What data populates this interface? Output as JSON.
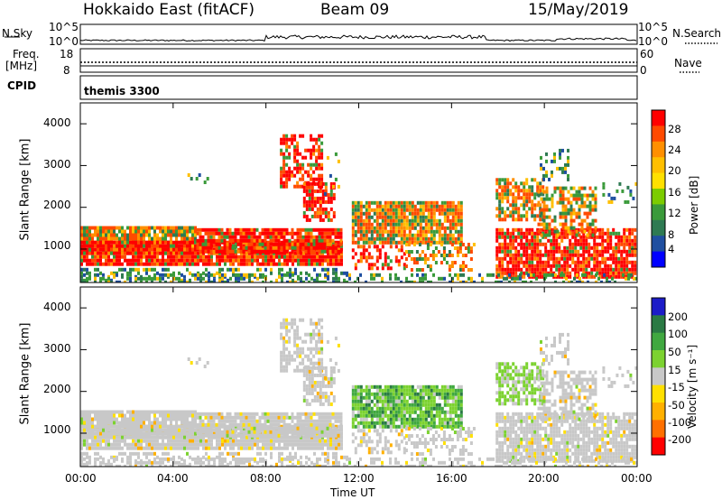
{
  "header": {
    "station": "Hokkaido East (fitACF)",
    "beam": "Beam 09",
    "date": "15/May/2019"
  },
  "summary": {
    "nsky_label": "N.Sky",
    "nsky_ticks": [
      "10^5",
      "10^0"
    ],
    "nsearch_label": "N.Search",
    "nsearch_ticks": [
      "10^5",
      "10^0"
    ],
    "freq_label_line1": "Freq.",
    "freq_label_line2": "[MHz]",
    "freq_ticks": [
      "18",
      "8"
    ],
    "nave_label": "Nave",
    "nave_ticks": [
      "60",
      "0"
    ],
    "cpid_label": "CPID",
    "cpid_value": "themis 3300"
  },
  "axes": {
    "ylabel": "Slant Range [km]",
    "yticks": [
      "4000",
      "3000",
      "2000",
      "1000"
    ],
    "xticks": [
      "00:00",
      "04:00",
      "08:00",
      "12:00",
      "16:00",
      "20:00",
      "00:00"
    ],
    "xlabel": "Time UT"
  },
  "colorbars": {
    "power": {
      "label": "Power [dB]",
      "ticks": [
        "28",
        "24",
        "20",
        "16",
        "12",
        "8",
        "4"
      ],
      "colors": [
        "#ff0000",
        "#ff4a00",
        "#ff8f00",
        "#ffbf00",
        "#ffe000",
        "#7ccc00",
        "#3a9a3a",
        "#2e7a52",
        "#1f4fa0",
        "#0000ff"
      ]
    },
    "velocity": {
      "label": "Velocity [m s⁻¹]",
      "ticks": [
        "200",
        "100",
        "50",
        "15",
        "-15",
        "-50",
        "-100",
        "-200"
      ],
      "colors": [
        "#1c1cc8",
        "#2a7a44",
        "#40a840",
        "#7cd230",
        "#c8c8c8",
        "#ffe000",
        "#ffb000",
        "#ff7000",
        "#ff0000"
      ]
    }
  },
  "chart_data": [
    {
      "type": "heatmap",
      "title": "Power [dB]",
      "xlabel": "Time UT",
      "ylabel": "Slant Range [km]",
      "xlim": [
        0,
        24
      ],
      "ylim": [
        200,
        4500
      ],
      "clim": [
        0,
        30
      ],
      "regions": [
        {
          "t": [
            0,
            11.5
          ],
          "r": [
            600,
            1500
          ],
          "dominant": "red/orange, ~20-30 dB"
        },
        {
          "t": [
            8.5,
            10.5
          ],
          "r": [
            1700,
            3700
          ],
          "dominant": "orange/red arc, ~20-30 dB"
        },
        {
          "t": [
            12,
            16.5
          ],
          "r": [
            1100,
            2200
          ],
          "dominant": "orange/green band, ~12-28 dB"
        },
        {
          "t": [
            18,
            24
          ],
          "r": [
            400,
            2700
          ],
          "dominant": "red/green, ~12-30 dB"
        }
      ]
    },
    {
      "type": "heatmap",
      "title": "Velocity [m s-1]",
      "xlabel": "Time UT",
      "ylabel": "Slant Range [km]",
      "xlim": [
        0,
        24
      ],
      "ylim": [
        200,
        4500
      ],
      "clim": [
        -200,
        200
      ],
      "regions": [
        {
          "t": [
            0,
            11.5
          ],
          "r": [
            400,
            1500
          ],
          "dominant": "grey ~0 m/s"
        },
        {
          "t": [
            12,
            16.5
          ],
          "r": [
            1100,
            2200
          ],
          "dominant": "green ~15-50 m/s"
        },
        {
          "t": [
            18,
            20
          ],
          "r": [
            1800,
            2600
          ],
          "dominant": "light green ~15-50 m/s"
        }
      ]
    }
  ]
}
